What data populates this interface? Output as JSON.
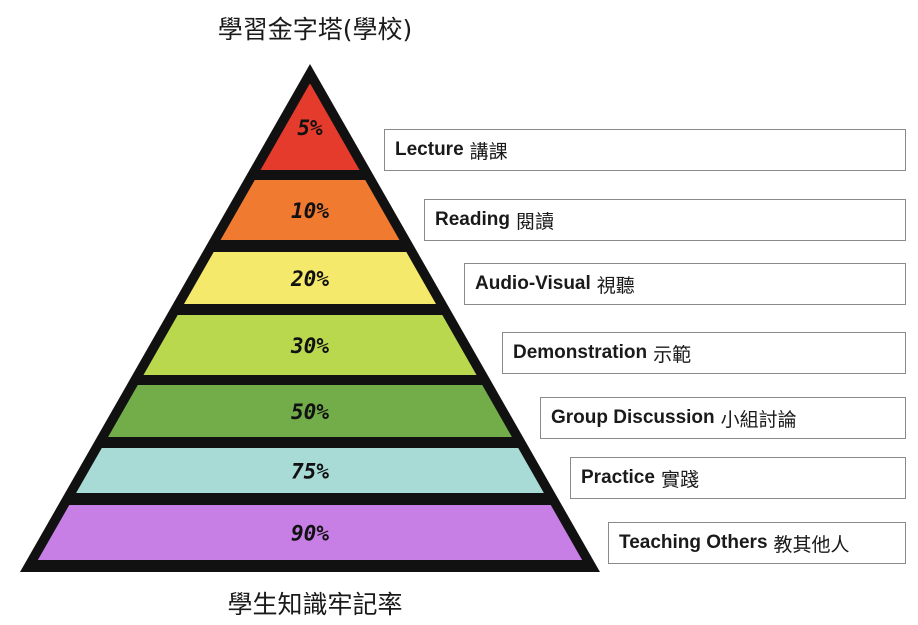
{
  "title": "學習金字塔(學校)",
  "subtitle": "學生知識牢記率",
  "levels": [
    {
      "percent": "5%",
      "en": "Lecture",
      "cn": "講課",
      "color": "#e53b2c"
    },
    {
      "percent": "10%",
      "en": "Reading",
      "cn": "閱讀",
      "color": "#ef7a30"
    },
    {
      "percent": "20%",
      "en": "Audio-Visual",
      "cn": "視聽",
      "color": "#f4e96b"
    },
    {
      "percent": "30%",
      "en": "Demonstration",
      "cn": "示範",
      "color": "#b9d84e"
    },
    {
      "percent": "50%",
      "en": "Group Discussion",
      "cn": "小組討論",
      "color": "#72ad4a"
    },
    {
      "percent": "75%",
      "en": "Practice",
      "cn": "實踐",
      "color": "#a8dbd6"
    },
    {
      "percent": "90%",
      "en": "Teaching Others",
      "cn": "教其他人",
      "color": "#c77fe6"
    }
  ]
}
